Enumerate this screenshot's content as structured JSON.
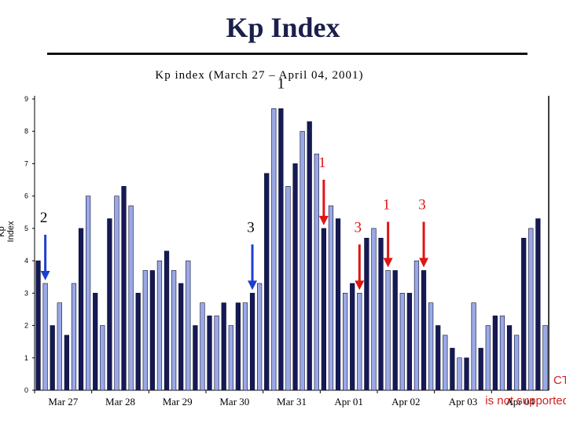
{
  "slide_title": "Kp Index",
  "colors": {
    "bar_light": "#9aa8e6",
    "bar_dark": "#151a55",
    "arrow_blue": "#1f3fd0",
    "arrow_red": "#e01515",
    "note_red": "#d32020"
  },
  "corner_note": [
    "CT",
    "t",
    "is not supported"
  ],
  "chart_data": {
    "type": "bar",
    "title": "Kp index (March 27 – April 04, 2001)",
    "ylabel": "Kp Index",
    "xlabel": "",
    "ylim": [
      0,
      9
    ],
    "yticks": [
      0,
      1,
      2,
      3,
      4,
      5,
      6,
      7,
      8,
      9
    ],
    "day_labels": [
      "Mar 27",
      "Mar 28",
      "Mar 29",
      "Mar 30",
      "Mar 31",
      "Apr 01",
      "Apr 02",
      "Apr 03",
      "Apr 04"
    ],
    "bar_style": "alternating light / dark pairs",
    "values": [
      4.0,
      3.3,
      2.0,
      2.7,
      1.7,
      3.3,
      5.0,
      6.0,
      3.0,
      2.0,
      5.3,
      6.0,
      6.3,
      5.7,
      3.0,
      3.7,
      3.7,
      4.0,
      4.3,
      3.7,
      3.3,
      4.0,
      2.0,
      2.7,
      2.3,
      2.3,
      2.7,
      2.0,
      2.7,
      2.7,
      3.0,
      3.3,
      6.7,
      8.7,
      8.7,
      6.3,
      7.0,
      8.0,
      8.3,
      7.3,
      5.0,
      5.7,
      5.3,
      3.0,
      3.3,
      3.0,
      4.7,
      5.0,
      4.7,
      3.7,
      3.7,
      3.0,
      3.0,
      4.0,
      3.7,
      2.7,
      2.0,
      1.7,
      1.3,
      1.0,
      1.0,
      2.7,
      1.3,
      2.0,
      2.3,
      2.3,
      2.0,
      1.7,
      4.7,
      5.0,
      5.3,
      2.0
    ],
    "annotations": [
      {
        "text": "2",
        "color": "blue",
        "arrow": true,
        "bar_index": 1
      },
      {
        "text": "3",
        "color": "blue",
        "arrow": true,
        "bar_index": 30
      },
      {
        "text": "1",
        "color": "dark",
        "arrow": false,
        "bar_index": 34
      },
      {
        "text": "1",
        "color": "red",
        "arrow": true,
        "bar_index": 40
      },
      {
        "text": "3",
        "color": "red",
        "arrow": true,
        "bar_index": 45
      },
      {
        "text": "1",
        "color": "red",
        "arrow": true,
        "bar_index": 49
      },
      {
        "text": "3",
        "color": "red",
        "arrow": true,
        "bar_index": 54
      }
    ]
  }
}
